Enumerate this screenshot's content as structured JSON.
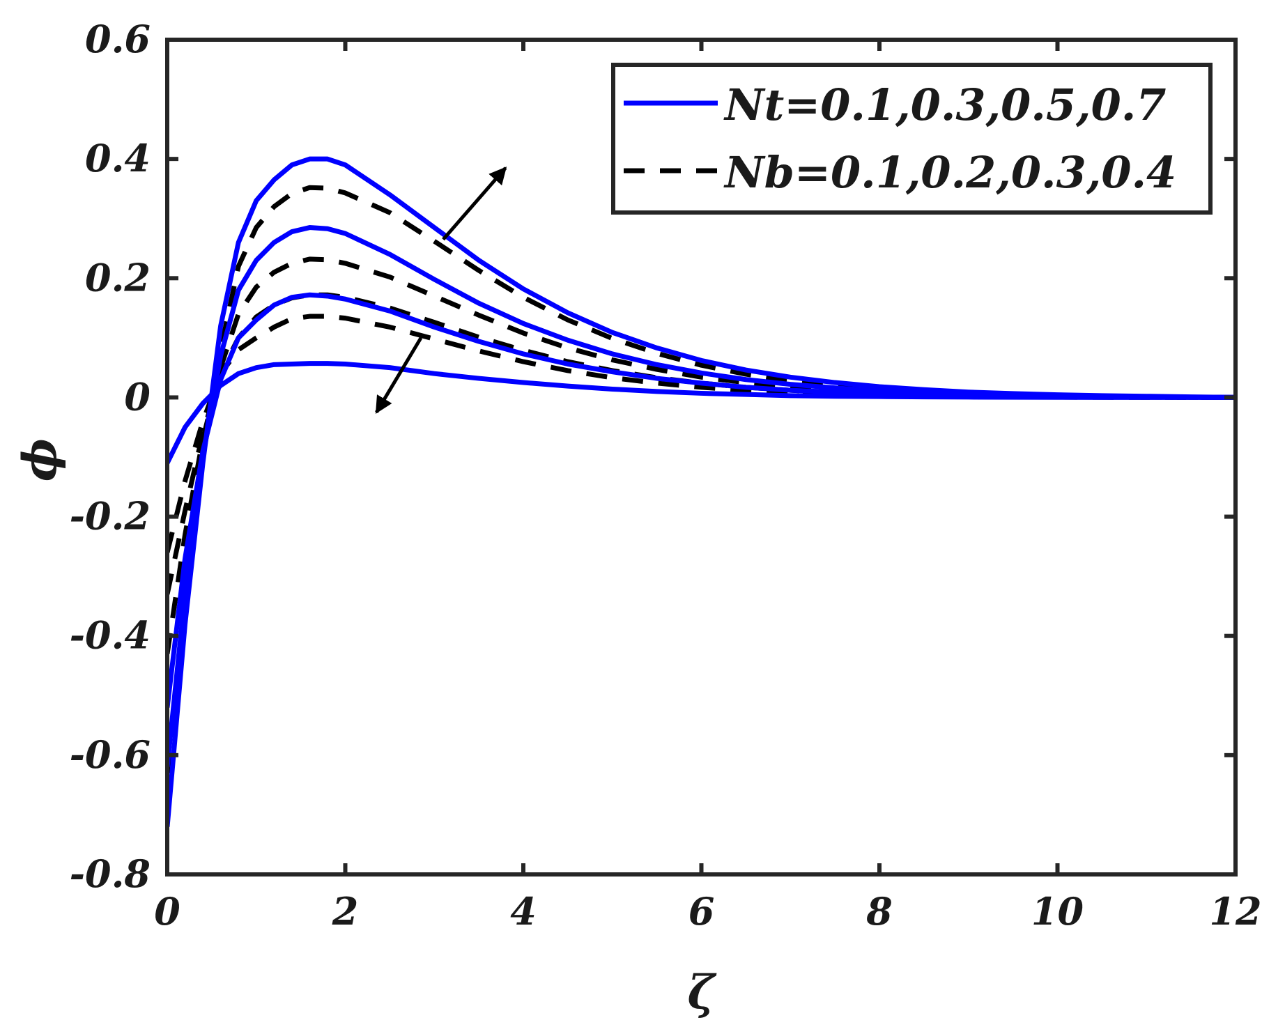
{
  "chart_data": {
    "type": "line",
    "xlabel": "ζ",
    "ylabel": "ϕ",
    "xlim": [
      0,
      12
    ],
    "ylim": [
      -0.8,
      0.6
    ],
    "xticks": [
      "0",
      "2",
      "4",
      "6",
      "8",
      "10",
      "12"
    ],
    "yticks": [
      "0.6",
      "0.4",
      "0.2",
      "0",
      "-0.2",
      "-0.4",
      "-0.6",
      "-0.8"
    ],
    "grid": false,
    "legend_position": "top-right",
    "legend": [
      {
        "label": "Nt=0.1,0.3,0.5,0.7",
        "style": "solid",
        "color": "#0000ff"
      },
      {
        "label": "Nb=0.1,0.2,0.3,0.4",
        "style": "dashed",
        "color": "#000000"
      }
    ],
    "x": [
      0,
      0.2,
      0.4,
      0.6,
      0.8,
      1.0,
      1.2,
      1.4,
      1.6,
      1.8,
      2.0,
      2.5,
      3,
      3.5,
      4,
      4.5,
      5,
      5.5,
      6,
      6.5,
      7,
      7.5,
      8,
      8.5,
      9,
      9.5,
      10,
      10.5,
      11,
      11.5,
      12
    ],
    "series": [
      {
        "style": "solid",
        "color": "#0000ff",
        "values": [
          -0.11,
          -0.05,
          -0.01,
          0.02,
          0.04,
          0.05,
          0.055,
          0.056,
          0.057,
          0.057,
          0.056,
          0.05,
          0.04,
          0.032,
          0.025,
          0.019,
          0.014,
          0.01,
          0.007,
          0.005,
          0.003,
          0.002,
          0.0015,
          0.001,
          0.0006,
          0.0004,
          0.0002,
          0.0001,
          0.0001,
          0,
          0
        ]
      },
      {
        "style": "solid",
        "color": "#0000ff",
        "values": [
          -0.52,
          -0.27,
          -0.09,
          0.03,
          0.1,
          0.13,
          0.155,
          0.168,
          0.172,
          0.17,
          0.165,
          0.145,
          0.118,
          0.094,
          0.073,
          0.056,
          0.043,
          0.032,
          0.024,
          0.017,
          0.012,
          0.009,
          0.006,
          0.004,
          0.003,
          0.002,
          0.0012,
          0.0008,
          0.0005,
          0.0003,
          0
        ]
      },
      {
        "style": "solid",
        "color": "#0000ff",
        "values": [
          -0.62,
          -0.33,
          -0.1,
          0.07,
          0.18,
          0.23,
          0.26,
          0.278,
          0.285,
          0.283,
          0.275,
          0.24,
          0.198,
          0.158,
          0.124,
          0.096,
          0.073,
          0.055,
          0.041,
          0.03,
          0.022,
          0.016,
          0.011,
          0.008,
          0.005,
          0.0035,
          0.0023,
          0.0015,
          0.001,
          0.0005,
          0
        ]
      },
      {
        "style": "solid",
        "color": "#0000ff",
        "values": [
          -0.72,
          -0.38,
          -0.11,
          0.12,
          0.26,
          0.33,
          0.365,
          0.39,
          0.4,
          0.4,
          0.39,
          0.34,
          0.285,
          0.23,
          0.182,
          0.142,
          0.109,
          0.083,
          0.062,
          0.046,
          0.034,
          0.025,
          0.018,
          0.013,
          0.009,
          0.0065,
          0.0045,
          0.003,
          0.002,
          0.001,
          0
        ]
      },
      {
        "style": "dashed",
        "color": "#000000",
        "values": [
          -0.26,
          -0.14,
          -0.04,
          0.04,
          0.08,
          0.1,
          0.118,
          0.132,
          0.136,
          0.136,
          0.133,
          0.118,
          0.098,
          0.078,
          0.06,
          0.045,
          0.033,
          0.024,
          0.017,
          0.012,
          0.008,
          0.0055,
          0.0035,
          0.0022,
          0.0014,
          0.0009,
          0.0005,
          0.0003,
          0.0002,
          0.0001,
          0
        ]
      },
      {
        "style": "dashed",
        "color": "#000000",
        "values": [
          -0.33,
          -0.19,
          -0.06,
          0.04,
          0.1,
          0.135,
          0.155,
          0.167,
          0.172,
          0.172,
          0.168,
          0.15,
          0.126,
          0.101,
          0.079,
          0.06,
          0.045,
          0.033,
          0.024,
          0.017,
          0.012,
          0.0085,
          0.0057,
          0.0038,
          0.0025,
          0.0016,
          0.001,
          0.0006,
          0.0004,
          0.0002,
          0
        ]
      },
      {
        "style": "dashed",
        "color": "#000000",
        "values": [
          -0.43,
          -0.23,
          -0.07,
          0.05,
          0.14,
          0.185,
          0.21,
          0.225,
          0.232,
          0.231,
          0.225,
          0.202,
          0.17,
          0.138,
          0.108,
          0.083,
          0.063,
          0.047,
          0.034,
          0.025,
          0.018,
          0.0125,
          0.0085,
          0.0057,
          0.0038,
          0.0025,
          0.0016,
          0.001,
          0.0006,
          0.0003,
          0
        ]
      },
      {
        "style": "dashed",
        "color": "#000000",
        "values": [
          -0.63,
          -0.33,
          -0.1,
          0.08,
          0.22,
          0.285,
          0.32,
          0.342,
          0.352,
          0.351,
          0.343,
          0.31,
          0.262,
          0.213,
          0.168,
          0.13,
          0.099,
          0.074,
          0.054,
          0.039,
          0.028,
          0.02,
          0.014,
          0.0095,
          0.0063,
          0.0042,
          0.0027,
          0.0017,
          0.001,
          0.0005,
          0
        ]
      }
    ],
    "annotations": [
      {
        "type": "arrow",
        "from": [
          3.1,
          0.265
        ],
        "to": [
          3.8,
          0.385
        ]
      },
      {
        "type": "arrow",
        "from": [
          2.85,
          0.1
        ],
        "to": [
          2.35,
          -0.025
        ]
      }
    ]
  }
}
